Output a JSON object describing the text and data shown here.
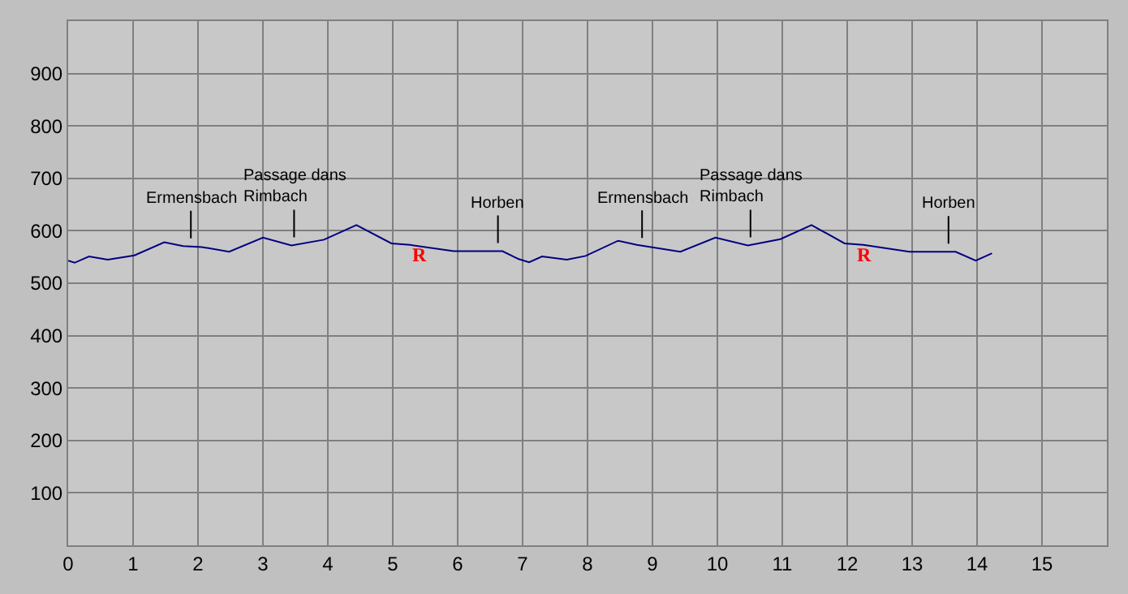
{
  "chart_data": {
    "type": "line",
    "x": [
      0.0,
      0.1,
      0.32,
      0.61,
      1.02,
      1.48,
      1.77,
      2.06,
      2.48,
      3.0,
      3.44,
      3.94,
      4.44,
      4.98,
      5.27,
      5.94,
      6.69,
      6.94,
      7.1,
      7.3,
      7.68,
      7.97,
      8.47,
      8.76,
      9.43,
      9.97,
      10.47,
      10.97,
      11.45,
      11.96,
      12.25,
      12.96,
      13.67,
      13.98,
      14.23
    ],
    "series": [
      {
        "color": "#000080",
        "values": [
          543,
          539,
          551,
          545,
          553,
          578,
          571,
          569,
          560,
          587,
          572,
          583,
          611,
          576,
          573,
          561,
          561,
          546,
          540,
          551,
          545,
          552,
          581,
          573,
          560,
          587,
          572,
          584,
          611,
          576,
          573,
          560,
          560,
          543,
          557
        ]
      }
    ],
    "xlim": [
      0,
      16
    ],
    "xticks": [
      0,
      1,
      2,
      3,
      4,
      5,
      6,
      7,
      8,
      9,
      10,
      11,
      12,
      13,
      14,
      15
    ],
    "ylim": [
      0,
      1000
    ],
    "yticks": [
      100,
      200,
      300,
      400,
      500,
      600,
      700,
      800,
      900
    ],
    "grid": true,
    "marker": "none",
    "line_style": "solid",
    "annotations": [
      {
        "text": "Ermensbach",
        "x": 1.89,
        "y": 570
      },
      {
        "text": "Passage dans\nRimbach",
        "x": 3.48,
        "y": 572
      },
      {
        "text": "Horben",
        "x": 6.62,
        "y": 561
      },
      {
        "text": "Ermensbach",
        "x": 8.84,
        "y": 571
      },
      {
        "text": "Passage dans\nRimbach",
        "x": 10.51,
        "y": 572
      },
      {
        "text": "Horben",
        "x": 13.56,
        "y": 560
      },
      "R",
      "R"
    ]
  }
}
